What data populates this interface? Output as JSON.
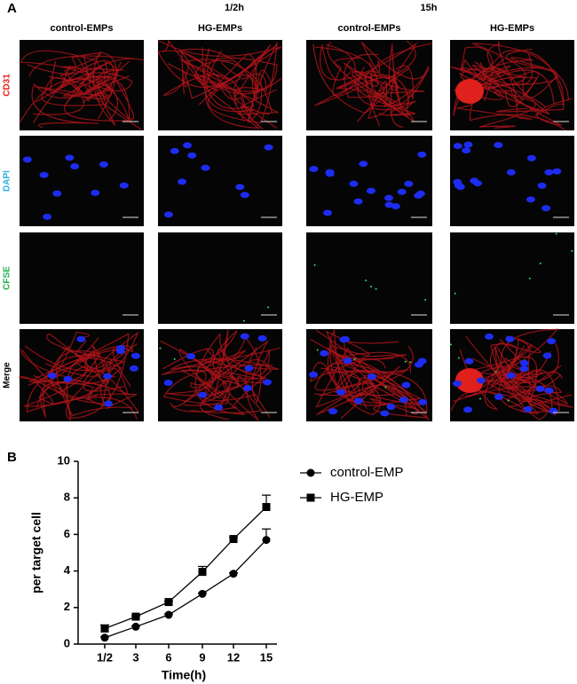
{
  "panel_a": {
    "label": "A",
    "times": [
      "1/2h",
      "15h"
    ],
    "columns": [
      "control-EMPs",
      "HG-EMPs",
      "control-EMPs",
      "HG-EMPs"
    ],
    "rows": [
      "CD31",
      "DAPI",
      "CFSE",
      "Merge"
    ]
  },
  "panel_b": {
    "label": "B"
  },
  "chart_data": {
    "type": "line",
    "categories": [
      "1/2",
      "3",
      "6",
      "9",
      "12",
      "15"
    ],
    "x_label": "Time(h)",
    "y_label": "per target cell",
    "ylim": [
      0,
      10
    ],
    "yticks": [
      0,
      2,
      4,
      6,
      8,
      10
    ],
    "series": [
      {
        "name": "control-EMP",
        "color": "#000000",
        "marker": "circle",
        "values": [
          0.35,
          0.95,
          1.6,
          2.75,
          3.85,
          5.7
        ],
        "errors": [
          0.05,
          0.05,
          0.05,
          0.05,
          0.05,
          0.6
        ]
      },
      {
        "name": "HG-EMP",
        "color": "#000000",
        "marker": "square",
        "values": [
          0.85,
          1.5,
          2.3,
          3.95,
          5.75,
          7.5
        ],
        "errors": [
          0.2,
          0.05,
          0.05,
          0.3,
          0.1,
          0.65
        ]
      }
    ]
  }
}
